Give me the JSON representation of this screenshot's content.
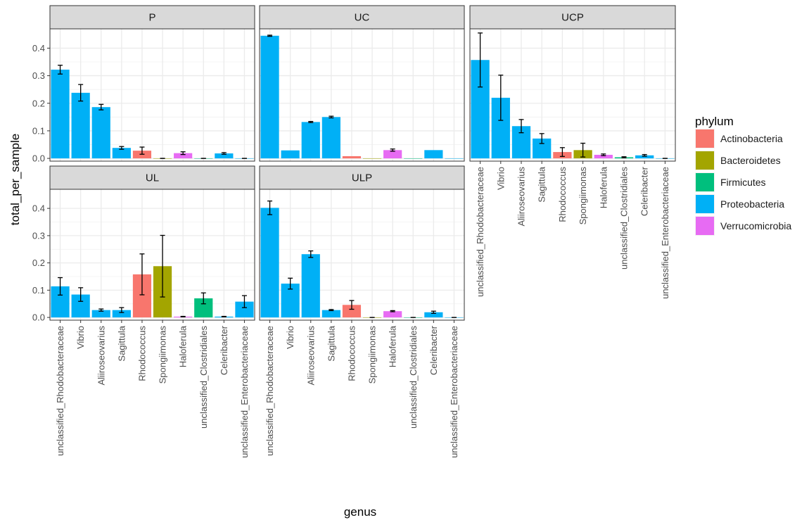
{
  "chart_data": {
    "type": "bar",
    "facets": [
      "P",
      "UC",
      "UCP",
      "UL",
      "ULP"
    ],
    "xlabel": "genus",
    "ylabel": "total_per_sample",
    "ylim": [
      -0.01,
      0.47
    ],
    "yticks": [
      0.0,
      0.1,
      0.2,
      0.3,
      0.4
    ],
    "ytick_labels": [
      "0.0",
      "0.1",
      "0.2",
      "0.3",
      "0.4"
    ],
    "grid": true,
    "categories": [
      "unclassified_Rhodobacteraceae",
      "Vibrio",
      "Aliiroseovarius",
      "Sagittula",
      "Rhodococcus",
      "Spongiimonas",
      "Haloferula",
      "unclassified_Clostridiales",
      "Celeribacter",
      "unclassified_Enterobacteriaceae"
    ],
    "category_phylum": [
      "Proteobacteria",
      "Proteobacteria",
      "Proteobacteria",
      "Proteobacteria",
      "Actinobacteria",
      "Bacteroidetes",
      "Verrucomicrobia",
      "Firmicutes",
      "Proteobacteria",
      "Proteobacteria"
    ],
    "legend": {
      "title": "phylum",
      "position": "right",
      "entries": [
        {
          "name": "Actinobacteria",
          "color": "#F8766D"
        },
        {
          "name": "Bacteroidetes",
          "color": "#A3A500"
        },
        {
          "name": "Firmicutes",
          "color": "#00BF7D"
        },
        {
          "name": "Proteobacteria",
          "color": "#00B0F6"
        },
        {
          "name": "Verrucomicrobia",
          "color": "#E76BF3"
        }
      ]
    },
    "panels": [
      {
        "facet": "P",
        "values": [
          0.322,
          0.238,
          0.186,
          0.038,
          0.028,
          0.0,
          0.019,
          0.0,
          0.018,
          0.0
        ],
        "errors": [
          0.016,
          0.03,
          0.01,
          0.005,
          0.013,
          0.0,
          0.005,
          0.0,
          0.003,
          0.0
        ]
      },
      {
        "facet": "UC",
        "values": [
          0.445,
          0.029,
          0.132,
          0.15,
          0.008,
          0.0,
          0.03,
          0.0,
          0.03,
          0.0
        ],
        "errors": [
          0.002,
          0.002,
          0.002,
          0.003,
          0.001,
          0.0,
          0.004,
          0.0,
          0.001,
          0.0
        ],
        "error_visible": [
          true,
          false,
          true,
          true,
          false,
          false,
          true,
          false,
          false,
          false
        ]
      },
      {
        "facet": "UCP",
        "values": [
          0.357,
          0.22,
          0.117,
          0.072,
          0.023,
          0.03,
          0.013,
          0.004,
          0.011,
          0.0
        ],
        "errors": [
          0.098,
          0.082,
          0.024,
          0.018,
          0.016,
          0.025,
          0.003,
          0.002,
          0.003,
          0.0
        ]
      },
      {
        "facet": "UL",
        "values": [
          0.114,
          0.084,
          0.027,
          0.027,
          0.158,
          0.188,
          0.003,
          0.07,
          0.003,
          0.058
        ],
        "errors": [
          0.032,
          0.025,
          0.004,
          0.009,
          0.075,
          0.113,
          0.001,
          0.02,
          0.001,
          0.022
        ]
      },
      {
        "facet": "ULP",
        "values": [
          0.402,
          0.124,
          0.232,
          0.027,
          0.046,
          0.0,
          0.023,
          0.0,
          0.019,
          0.0
        ],
        "errors": [
          0.025,
          0.02,
          0.012,
          0.002,
          0.016,
          0.0,
          0.002,
          0.0,
          0.004,
          0.0
        ]
      }
    ]
  }
}
